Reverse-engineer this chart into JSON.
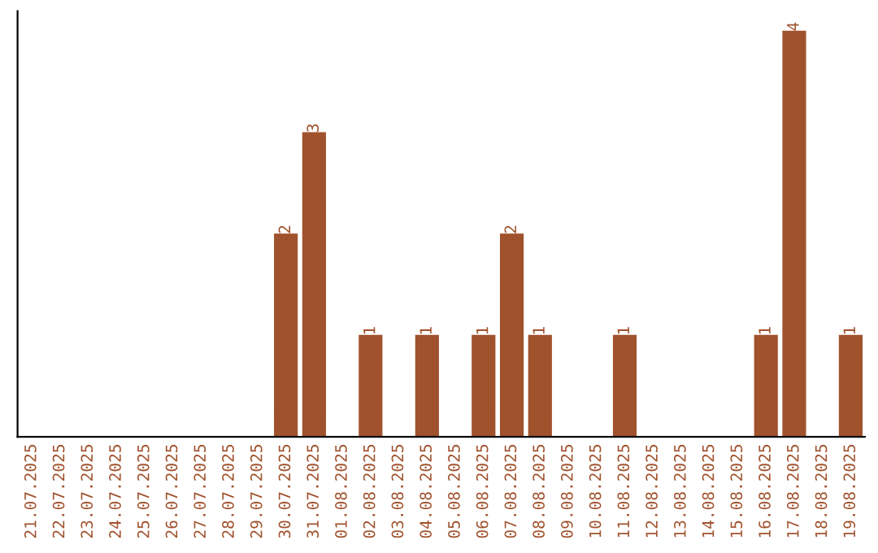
{
  "chart_data": {
    "type": "bar",
    "categories": [
      "21.07.2025",
      "22.07.2025",
      "23.07.2025",
      "24.07.2025",
      "25.07.2025",
      "26.07.2025",
      "27.07.2025",
      "28.07.2025",
      "29.07.2025",
      "30.07.2025",
      "31.07.2025",
      "01.08.2025",
      "02.08.2025",
      "03.08.2025",
      "04.08.2025",
      "05.08.2025",
      "06.08.2025",
      "07.08.2025",
      "08.08.2025",
      "09.08.2025",
      "10.08.2025",
      "11.08.2025",
      "12.08.2025",
      "13.08.2025",
      "14.08.2025",
      "15.08.2025",
      "16.08.2025",
      "17.08.2025",
      "18.08.2025",
      "19.08.2025"
    ],
    "values": [
      0,
      0,
      0,
      0,
      0,
      0,
      0,
      0,
      0,
      2,
      3,
      0,
      1,
      0,
      1,
      0,
      1,
      2,
      1,
      0,
      0,
      1,
      0,
      0,
      0,
      0,
      1,
      4,
      0,
      1
    ],
    "value_labels": [
      null,
      null,
      null,
      null,
      null,
      null,
      null,
      null,
      null,
      "2",
      "3",
      null,
      "1",
      null,
      "1",
      null,
      "1",
      "2",
      "1",
      null,
      null,
      "1",
      null,
      null,
      null,
      null,
      "1",
      "4",
      null,
      "1"
    ],
    "color": "#a0522d",
    "tick_labels": "x",
    "grid": false,
    "legend": false
  }
}
